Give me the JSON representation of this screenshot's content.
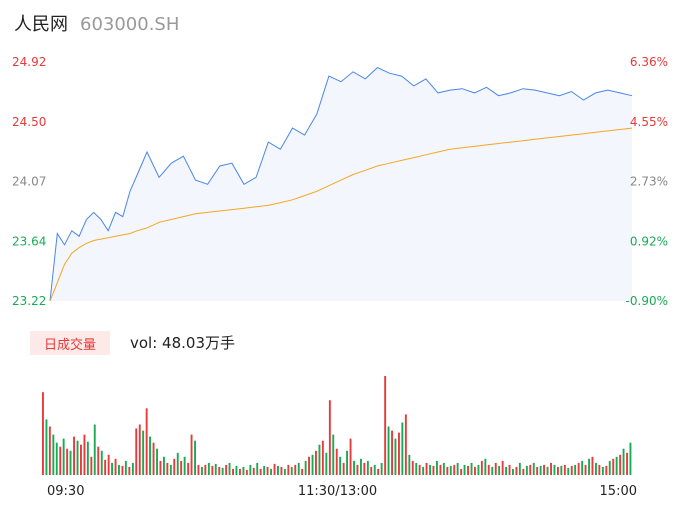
{
  "header": {
    "name": "人民网",
    "code": "603000.SH"
  },
  "volume_panel": {
    "tab_label": "日成交量",
    "volume_text": "vol: 48.03万手"
  },
  "colors": {
    "price_line": "#4a86e8",
    "avg_line": "#f5a623",
    "up": "#e83a3a",
    "down": "#1aaa55",
    "neutral": "#888888",
    "area_fill": "#f3f6fd"
  },
  "chart_data": [
    {
      "type": "line",
      "title": "",
      "y_left_ticks": [
        "24.92",
        "24.50",
        "24.07",
        "23.64",
        "23.22"
      ],
      "y_right_ticks": [
        "6.36%",
        "4.55%",
        "2.73%",
        "0.92%",
        "-0.90%"
      ],
      "ylim": [
        23.22,
        24.92
      ],
      "x_ticks": [
        "09:30",
        "11:30/13:00",
        "15:00"
      ],
      "x": [
        0,
        3,
        6,
        9,
        12,
        15,
        18,
        21,
        24,
        27,
        30,
        33,
        36,
        40,
        45,
        50,
        55,
        60,
        65,
        70,
        75,
        80,
        85,
        90,
        95,
        100,
        105,
        110,
        115,
        120,
        125,
        130,
        135,
        140,
        145,
        150,
        155,
        160,
        165,
        170,
        175,
        180,
        185,
        190,
        195,
        200,
        205,
        210,
        215,
        220,
        225,
        230,
        235,
        240
      ],
      "series": [
        {
          "values": [
            23.22,
            23.7,
            23.62,
            23.72,
            23.68,
            23.8,
            23.85,
            23.8,
            23.72,
            23.85,
            23.82,
            24.0,
            24.12,
            24.28,
            24.1,
            24.2,
            24.25,
            24.08,
            24.05,
            24.18,
            24.2,
            24.05,
            24.1,
            24.35,
            24.3,
            24.45,
            24.4,
            24.55,
            24.82,
            24.78,
            24.85,
            24.8,
            24.88,
            24.84,
            24.82,
            24.75,
            24.8,
            24.7,
            24.72,
            24.73,
            24.7,
            24.74,
            24.68,
            24.7,
            24.73,
            24.72,
            24.7,
            24.68,
            24.71,
            24.65,
            24.7,
            24.72,
            24.7,
            24.68
          ]
        },
        {
          "values": [
            23.22,
            23.35,
            23.48,
            23.56,
            23.6,
            23.63,
            23.65,
            23.66,
            23.67,
            23.68,
            23.69,
            23.7,
            23.72,
            23.74,
            23.78,
            23.8,
            23.82,
            23.84,
            23.85,
            23.86,
            23.87,
            23.88,
            23.89,
            23.9,
            23.92,
            23.94,
            23.97,
            24.0,
            24.04,
            24.08,
            24.12,
            24.15,
            24.18,
            24.2,
            24.22,
            24.24,
            24.26,
            24.28,
            24.3,
            24.31,
            24.32,
            24.33,
            24.34,
            24.35,
            24.36,
            24.37,
            24.38,
            24.39,
            24.4,
            24.41,
            24.42,
            24.43,
            24.44,
            24.45
          ]
        }
      ]
    },
    {
      "type": "bar",
      "title": "",
      "x_ticks": [
        "09:30",
        "11:30/13:00",
        "15:00"
      ],
      "values": [
        82,
        55,
        48,
        40,
        32,
        28,
        36,
        26,
        24,
        38,
        34,
        30,
        40,
        33,
        18,
        50,
        28,
        24,
        15,
        20,
        12,
        16,
        10,
        9,
        14,
        8,
        12,
        46,
        50,
        44,
        66,
        38,
        32,
        26,
        14,
        18,
        12,
        10,
        16,
        22,
        14,
        18,
        12,
        40,
        34,
        10,
        8,
        10,
        12,
        9,
        11,
        8,
        7,
        10,
        12,
        6,
        9,
        6,
        8,
        5,
        10,
        7,
        12,
        6,
        9,
        8,
        6,
        11,
        9,
        8,
        6,
        10,
        8,
        10,
        12,
        6,
        14,
        18,
        20,
        24,
        30,
        34,
        22,
        74,
        40,
        26,
        18,
        12,
        24,
        36,
        14,
        10,
        16,
        12,
        14,
        8,
        10,
        6,
        12,
        98,
        48,
        44,
        36,
        42,
        52,
        60,
        20,
        14,
        12,
        10,
        8,
        12,
        10,
        9,
        14,
        10,
        12,
        8,
        9,
        10,
        12,
        6,
        10,
        9,
        12,
        8,
        10,
        14,
        16,
        10,
        8,
        12,
        9,
        14,
        8,
        10,
        6,
        8,
        12,
        6,
        9,
        10,
        12,
        8,
        9,
        10,
        8,
        12,
        10,
        8,
        9,
        10,
        7,
        9,
        10,
        12,
        14,
        10,
        16,
        18,
        12,
        10,
        8,
        9,
        14,
        16,
        18,
        20,
        26,
        22,
        32
      ],
      "directions": [
        "u",
        "d",
        "u",
        "d",
        "d",
        "u",
        "d",
        "u",
        "d",
        "u",
        "d",
        "u",
        "u",
        "d",
        "u",
        "d",
        "u",
        "d",
        "u",
        "u",
        "d",
        "u",
        "d",
        "u",
        "d",
        "u",
        "d",
        "u",
        "u",
        "d",
        "u",
        "d",
        "u",
        "d",
        "u",
        "d",
        "u",
        "d",
        "u",
        "d",
        "u",
        "d",
        "u",
        "u",
        "d",
        "u",
        "d",
        "u",
        "d",
        "u",
        "d",
        "u",
        "d",
        "u",
        "d",
        "u",
        "d",
        "u",
        "d",
        "u",
        "d",
        "u",
        "d",
        "u",
        "d",
        "u",
        "d",
        "u",
        "d",
        "u",
        "d",
        "u",
        "d",
        "u",
        "d",
        "u",
        "d",
        "u",
        "d",
        "u",
        "d",
        "u",
        "d",
        "u",
        "d",
        "u",
        "d",
        "u",
        "d",
        "u",
        "d",
        "u",
        "d",
        "u",
        "d",
        "u",
        "d",
        "u",
        "d",
        "u",
        "d",
        "u",
        "d",
        "u",
        "d",
        "u",
        "d",
        "u",
        "d",
        "u",
        "d",
        "u",
        "d",
        "u",
        "d",
        "u",
        "d",
        "u",
        "d",
        "u",
        "d",
        "u",
        "d",
        "u",
        "d",
        "u",
        "d",
        "u",
        "d",
        "u",
        "d",
        "u",
        "d",
        "u",
        "d",
        "u",
        "d",
        "u",
        "d",
        "u",
        "d",
        "u",
        "d",
        "u",
        "d",
        "u",
        "d",
        "u",
        "d",
        "u",
        "d",
        "u",
        "d",
        "u",
        "d",
        "u",
        "d",
        "u",
        "d",
        "u",
        "d",
        "u",
        "d",
        "u",
        "d",
        "u",
        "d",
        "u",
        "d",
        "u",
        "d"
      ]
    }
  ]
}
